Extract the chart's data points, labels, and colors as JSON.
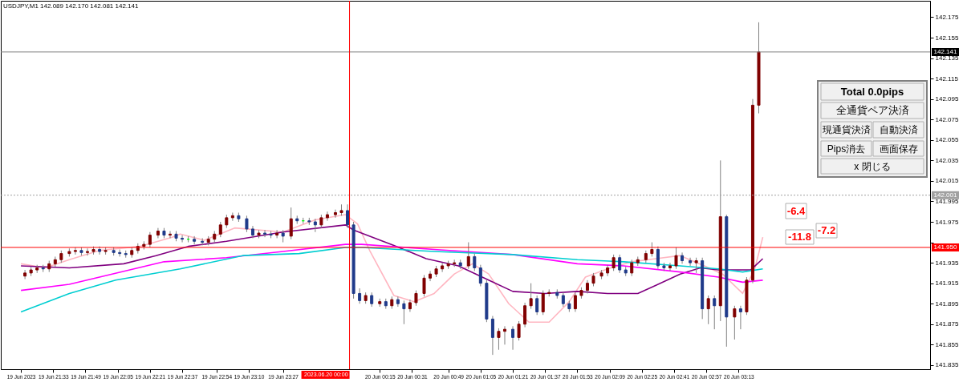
{
  "chart_data": {
    "type": "candlestick",
    "title": "USDJPY,M1 142.089 142.170 142.081 142.141",
    "x": [
      "2023-06-19T21:19",
      "2023-06-19T21:22",
      "2023-06-19T21:25",
      "2023-06-19T21:28",
      "2023-06-19T21:31",
      "2023-06-19T21:34",
      "2023-06-19T21:37",
      "2023-06-19T21:41",
      "2023-06-19T21:44",
      "2023-06-19T21:47",
      "2023-06-19T21:50",
      "2023-06-19T21:53",
      "2023-06-19T21:56",
      "2023-06-19T21:59",
      "2023-06-19T22:03",
      "2023-06-19T22:06",
      "2023-06-19T22:09",
      "2023-06-19T22:12",
      "2023-06-19T22:15",
      "2023-06-19T22:18",
      "2023-06-19T22:21",
      "2023-06-19T22:25",
      "2023-06-19T22:28",
      "2023-06-19T22:31",
      "2023-06-19T22:34",
      "2023-06-19T22:37",
      "2023-06-19T22:40",
      "2023-06-19T22:43",
      "2023-06-19T22:47",
      "2023-06-19T22:50",
      "2023-06-19T22:53",
      "2023-06-19T22:56",
      "2023-06-19T22:59",
      "2023-06-19T23:02",
      "2023-06-19T23:05",
      "2023-06-19T23:09",
      "2023-06-19T23:12",
      "2023-06-19T23:15",
      "2023-06-19T23:18",
      "2023-06-19T23:21",
      "2023-06-19T23:24",
      "2023-06-19T23:27",
      "2023-06-19T23:31",
      "2023-06-19T23:34",
      "2023-06-19T23:37",
      "2023-06-19T23:40",
      "2023-06-19T23:43",
      "2023-06-19T23:46",
      "2023-06-19T23:49",
      "2023-06-19T23:53",
      "2023-06-19T23:56",
      "2023-06-19T23:59",
      "2023-06-20T00:02",
      "2023-06-20T00:05",
      "2023-06-20T00:08",
      "2023-06-20T00:11",
      "2023-06-20T00:15",
      "2023-06-20T00:18",
      "2023-06-20T00:21",
      "2023-06-20T00:24",
      "2023-06-20T00:27",
      "2023-06-20T00:30",
      "2023-06-20T00:33",
      "2023-06-20T00:37",
      "2023-06-20T00:40",
      "2023-06-20T00:43",
      "2023-06-20T00:46",
      "2023-06-20T00:49",
      "2023-06-20T00:52",
      "2023-06-20T00:55",
      "2023-06-20T00:59",
      "2023-06-20T01:02",
      "2023-06-20T01:05",
      "2023-06-20T01:08",
      "2023-06-20T01:11",
      "2023-06-20T01:14",
      "2023-06-20T01:17",
      "2023-06-20T01:21",
      "2023-06-20T01:24",
      "2023-06-20T01:27",
      "2023-06-20T01:30",
      "2023-06-20T01:33",
      "2023-06-20T01:36",
      "2023-06-20T01:39",
      "2023-06-20T01:43",
      "2023-06-20T01:46",
      "2023-06-20T01:49",
      "2023-06-20T01:52",
      "2023-06-20T01:55",
      "2023-06-20T01:58",
      "2023-06-20T02:01",
      "2023-06-20T02:05",
      "2023-06-20T02:08",
      "2023-06-20T02:11",
      "2023-06-20T02:14",
      "2023-06-20T02:17",
      "2023-06-20T02:20",
      "2023-06-20T02:23",
      "2023-06-20T02:27",
      "2023-06-20T02:30",
      "2023-06-20T02:33",
      "2023-06-20T02:36",
      "2023-06-20T02:39",
      "2023-06-20T02:42",
      "2023-06-20T02:45",
      "2023-06-20T02:49",
      "2023-06-20T02:52",
      "2023-06-20T02:55",
      "2023-06-20T02:58",
      "2023-06-20T03:01",
      "2023-06-20T03:04",
      "2023-06-20T03:07",
      "2023-06-20T03:11",
      "2023-06-20T03:14",
      "2023-06-20T03:17",
      "2023-06-20T03:20",
      "2023-06-20T03:23"
    ],
    "ohlc": [
      [
        141.922,
        141.928,
        141.919,
        141.925
      ],
      [
        141.925,
        141.931,
        141.922,
        141.928
      ],
      [
        141.928,
        141.933,
        141.925,
        141.93
      ],
      [
        141.93,
        141.933,
        141.926,
        141.929
      ],
      [
        141.929,
        141.937,
        141.926,
        141.934
      ],
      [
        141.934,
        141.941,
        141.931,
        141.938
      ],
      [
        141.938,
        141.947,
        141.935,
        141.944
      ],
      [
        141.944,
        141.949,
        141.941,
        141.946
      ],
      [
        141.946,
        141.95,
        141.943,
        141.947
      ],
      [
        141.947,
        141.95,
        141.942,
        141.945
      ],
      [
        141.945,
        141.949,
        141.942,
        141.946
      ],
      [
        141.946,
        141.951,
        141.943,
        141.948
      ],
      [
        141.948,
        141.951,
        141.943,
        141.946
      ],
      [
        141.946,
        141.95,
        141.943,
        141.947
      ],
      [
        141.947,
        141.95,
        141.942,
        141.945
      ],
      [
        141.945,
        141.948,
        141.941,
        141.944
      ],
      [
        141.944,
        141.947,
        141.94,
        141.943
      ],
      [
        141.943,
        141.95,
        141.94,
        141.947
      ],
      [
        141.947,
        141.954,
        141.944,
        141.951
      ],
      [
        141.951,
        141.956,
        141.948,
        141.953
      ],
      [
        141.953,
        141.965,
        141.95,
        141.962
      ],
      [
        141.962,
        141.969,
        141.959,
        141.966
      ],
      [
        141.966,
        141.969,
        141.959,
        141.962
      ],
      [
        141.962,
        141.966,
        141.959,
        141.963
      ],
      [
        141.963,
        141.966,
        141.956,
        141.959
      ],
      [
        141.959,
        141.962,
        141.955,
        141.958
      ],
      [
        141.958,
        141.961,
        141.955,
        141.958
      ],
      [
        141.958,
        141.961,
        141.953,
        141.956
      ],
      [
        141.956,
        141.959,
        141.952,
        141.955
      ],
      [
        141.955,
        141.961,
        141.952,
        141.958
      ],
      [
        141.958,
        141.966,
        141.955,
        141.963
      ],
      [
        141.963,
        141.975,
        141.96,
        141.972
      ],
      [
        141.972,
        141.982,
        141.969,
        141.979
      ],
      [
        141.979,
        141.984,
        141.976,
        141.981
      ],
      [
        141.981,
        141.984,
        141.975,
        141.978
      ],
      [
        141.978,
        141.981,
        141.965,
        141.968
      ],
      [
        141.968,
        141.971,
        141.959,
        141.962
      ],
      [
        141.962,
        141.967,
        141.959,
        141.964
      ],
      [
        141.964,
        141.967,
        141.96,
        141.963
      ],
      [
        141.963,
        141.966,
        141.959,
        141.962
      ],
      [
        141.962,
        141.967,
        141.959,
        141.964
      ],
      [
        141.964,
        141.967,
        141.955,
        141.961
      ],
      [
        141.961,
        141.989,
        141.958,
        141.978
      ],
      [
        141.978,
        141.981,
        141.973,
        141.976
      ],
      [
        141.976,
        141.979,
        141.973,
        141.976
      ],
      [
        141.976,
        141.979,
        141.972,
        141.975
      ],
      [
        141.975,
        141.978,
        141.965,
        141.972
      ],
      [
        141.972,
        141.982,
        141.969,
        141.979
      ],
      [
        141.979,
        141.985,
        141.976,
        141.982
      ],
      [
        141.982,
        141.987,
        141.979,
        141.984
      ],
      [
        141.984,
        141.992,
        141.981,
        141.986
      ],
      [
        141.986,
        141.992,
        141.969,
        141.972
      ],
      [
        141.972,
        141.975,
        141.9,
        141.905
      ],
      [
        141.905,
        141.91,
        141.895,
        141.898
      ],
      [
        141.898,
        141.906,
        141.895,
        141.903
      ],
      [
        141.903,
        141.906,
        141.892,
        141.895
      ],
      [
        141.895,
        141.9,
        141.892,
        141.897
      ],
      [
        141.897,
        141.9,
        141.89,
        141.893
      ],
      [
        141.893,
        141.902,
        141.89,
        141.899
      ],
      [
        141.899,
        141.902,
        141.892,
        141.895
      ],
      [
        141.895,
        141.898,
        141.875,
        141.89
      ],
      [
        141.89,
        141.899,
        141.887,
        141.896
      ],
      [
        141.896,
        141.908,
        141.893,
        141.905
      ],
      [
        141.905,
        141.923,
        141.902,
        141.92
      ],
      [
        141.92,
        141.927,
        141.917,
        141.924
      ],
      [
        141.924,
        141.932,
        141.921,
        141.929
      ],
      [
        141.929,
        141.935,
        141.926,
        141.932
      ],
      [
        141.932,
        141.937,
        141.929,
        141.934
      ],
      [
        141.934,
        141.938,
        141.931,
        141.935
      ],
      [
        141.935,
        141.938,
        141.929,
        141.932
      ],
      [
        141.932,
        141.955,
        141.929,
        141.941
      ],
      [
        141.941,
        141.944,
        141.927,
        141.93
      ],
      [
        141.93,
        141.933,
        141.912,
        141.915
      ],
      [
        141.915,
        141.918,
        141.877,
        141.88
      ],
      [
        141.88,
        141.883,
        141.845,
        141.862
      ],
      [
        141.862,
        141.871,
        141.85,
        141.868
      ],
      [
        141.868,
        141.873,
        141.855,
        141.87
      ],
      [
        141.87,
        141.873,
        141.85,
        141.862
      ],
      [
        141.862,
        141.878,
        141.859,
        141.875
      ],
      [
        141.875,
        141.896,
        141.872,
        141.893
      ],
      [
        141.893,
        141.915,
        141.89,
        141.9
      ],
      [
        141.9,
        141.903,
        141.884,
        141.887
      ],
      [
        141.887,
        141.908,
        141.884,
        141.905
      ],
      [
        141.905,
        141.909,
        141.902,
        141.906
      ],
      [
        141.906,
        141.909,
        141.9,
        141.903
      ],
      [
        141.903,
        141.906,
        141.892,
        141.895
      ],
      [
        141.895,
        141.898,
        141.887,
        141.89
      ],
      [
        141.89,
        141.906,
        141.887,
        141.903
      ],
      [
        141.903,
        141.911,
        141.9,
        141.908
      ],
      [
        141.908,
        141.918,
        141.905,
        141.915
      ],
      [
        141.915,
        141.925,
        141.912,
        141.922
      ],
      [
        141.922,
        141.928,
        141.919,
        141.925
      ],
      [
        141.925,
        141.933,
        141.922,
        141.93
      ],
      [
        141.93,
        141.943,
        141.927,
        141.94
      ],
      [
        141.94,
        141.943,
        141.925,
        141.928
      ],
      [
        141.928,
        141.931,
        141.922,
        141.925
      ],
      [
        141.925,
        141.938,
        141.922,
        141.935
      ],
      [
        141.935,
        141.941,
        141.932,
        141.938
      ],
      [
        141.938,
        141.947,
        141.935,
        141.944
      ],
      [
        141.944,
        141.955,
        141.941,
        141.948
      ],
      [
        141.948,
        141.951,
        141.929,
        141.932
      ],
      [
        141.932,
        141.935,
        141.927,
        141.93
      ],
      [
        141.93,
        141.935,
        141.927,
        141.932
      ],
      [
        141.932,
        141.95,
        141.929,
        141.942
      ],
      [
        141.942,
        141.945,
        141.934,
        141.937
      ],
      [
        141.937,
        141.94,
        141.932,
        141.935
      ],
      [
        141.935,
        141.94,
        141.925,
        141.937
      ],
      [
        141.937,
        141.94,
        141.88,
        141.89
      ],
      [
        141.89,
        141.903,
        141.875,
        141.9
      ],
      [
        141.9,
        141.903,
        141.87,
        141.893
      ],
      [
        141.893,
        142.035,
        141.878,
        141.98
      ],
      [
        141.98,
        141.982,
        141.853,
        141.882
      ],
      [
        141.882,
        141.893,
        141.86,
        141.89
      ],
      [
        141.89,
        141.893,
        141.87,
        141.887
      ],
      [
        141.887,
        141.921,
        141.884,
        141.918
      ],
      [
        141.918,
        142.095,
        141.915,
        142.089
      ],
      [
        142.089,
        142.17,
        142.081,
        142.141
      ]
    ],
    "colors": [
      "#800000",
      "#800000",
      "#800000",
      "#1f3a8a",
      "#800000",
      "#800000",
      "#800000",
      "#800000",
      "#800000",
      "#1f3a8a",
      "#800000",
      "#800000",
      "#1f3a8a",
      "#800000",
      "#1f3a8a",
      "#1f3a8a",
      "#1f3a8a",
      "#800000",
      "#800000",
      "#800000",
      "#800000",
      "#800000",
      "#1f3a8a",
      "#800000",
      "#1f3a8a",
      "#1f3a8a",
      "#00ff00",
      "#1f3a8a",
      "#1f3a8a",
      "#800000",
      "#800000",
      "#800000",
      "#800000",
      "#800000",
      "#1f3a8a",
      "#1f3a8a",
      "#1f3a8a",
      "#800000",
      "#1f3a8a",
      "#1f3a8a",
      "#800000",
      "#1f3a8a",
      "#800000",
      "#1f3a8a",
      "#00ff00",
      "#1f3a8a",
      "#1f3a8a",
      "#800000",
      "#800000",
      "#800000",
      "#800000",
      "#1f3a8a",
      "#1f3a8a",
      "#1f3a8a",
      "#800000",
      "#1f3a8a",
      "#800000",
      "#1f3a8a",
      "#800000",
      "#1f3a8a",
      "#1f3a8a",
      "#800000",
      "#800000",
      "#800000",
      "#800000",
      "#800000",
      "#800000",
      "#800000",
      "#800000",
      "#1f3a8a",
      "#800000",
      "#1f3a8a",
      "#1f3a8a",
      "#1f3a8a",
      "#1f3a8a",
      "#800000",
      "#800000",
      "#1f3a8a",
      "#800000",
      "#800000",
      "#800000",
      "#1f3a8a",
      "#800000",
      "#800000",
      "#1f3a8a",
      "#1f3a8a",
      "#1f3a8a",
      "#800000",
      "#800000",
      "#800000",
      "#800000",
      "#800000",
      "#800000",
      "#800000",
      "#1f3a8a",
      "#1f3a8a",
      "#800000",
      "#800000",
      "#800000",
      "#800000",
      "#1f3a8a",
      "#1f3a8a",
      "#800000",
      "#800000",
      "#1f3a8a",
      "#1f3a8a",
      "#800000",
      "#1f3a8a",
      "#800000",
      "#1f3a8a",
      "#800000",
      "#1f3a8a",
      "#800000",
      "#1f3a8a",
      "#800000",
      "#800000",
      "#800000"
    ],
    "series": [
      {
        "type": "line",
        "color": "#ffb6c1",
        "x": [
          "2023-06-19T21:17",
          "2023-06-19T21:29",
          "2023-06-19T21:41",
          "2023-06-19T21:56",
          "2023-06-19T22:16",
          "2023-06-19T22:32",
          "2023-06-19T22:36",
          "2023-06-19T22:48",
          "2023-06-19T23:03",
          "2023-06-19T23:27",
          "2023-06-19T23:43",
          "2023-06-19T23:58",
          "2023-06-20T00:04",
          "2023-06-20T00:10",
          "2023-06-20T00:22",
          "2023-06-20T00:32",
          "2023-06-20T00:42",
          "2023-06-20T00:52",
          "2023-06-20T01:01",
          "2023-06-20T01:09",
          "2023-06-20T01:19",
          "2023-06-20T01:29",
          "2023-06-20T01:39",
          "2023-06-20T01:49",
          "2023-06-20T01:57",
          "2023-06-20T02:08",
          "2023-06-20T02:20",
          "2023-06-20T02:32",
          "2023-06-20T02:44",
          "2023-06-20T02:56",
          "2023-06-20T03:05",
          "2023-06-20T03:15",
          "2023-06-20T03:21",
          "2023-06-20T03:25"
        ],
        "values": [
          141.934,
          141.93,
          141.938,
          141.947,
          141.951,
          141.96,
          141.963,
          141.957,
          141.969,
          141.965,
          141.977,
          141.982,
          141.973,
          141.947,
          141.903,
          141.897,
          141.905,
          141.924,
          141.934,
          141.924,
          141.895,
          141.877,
          141.877,
          141.897,
          141.921,
          141.929,
          141.936,
          141.939,
          141.942,
          141.932,
          141.924,
          141.905,
          141.929,
          141.96
        ]
      },
      {
        "type": "line",
        "color": "#800080",
        "x": [
          "2023-06-19T21:17",
          "2023-06-19T21:41",
          "2023-06-19T22:08",
          "2023-06-19T22:24",
          "2023-06-19T22:40",
          "2023-06-19T22:59",
          "2023-06-19T23:27",
          "2023-06-19T23:58",
          "2023-06-20T00:02",
          "2023-06-20T00:22",
          "2023-06-20T00:38",
          "2023-06-20T00:54",
          "2023-06-20T01:09",
          "2023-06-20T01:21",
          "2023-06-20T01:37",
          "2023-06-20T01:53",
          "2023-06-20T02:08",
          "2023-06-20T02:23",
          "2023-06-20T02:32",
          "2023-06-20T02:44",
          "2023-06-20T02:54",
          "2023-06-20T03:03",
          "2023-06-20T03:13",
          "2023-06-20T03:19",
          "2023-06-20T03:25"
        ],
        "values": [
          141.932,
          141.93,
          141.934,
          141.942,
          141.951,
          141.956,
          141.965,
          141.972,
          141.967,
          141.952,
          141.939,
          141.932,
          141.918,
          141.907,
          141.905,
          141.907,
          141.905,
          141.905,
          141.913,
          141.924,
          141.93,
          141.928,
          141.928,
          141.928,
          141.939
        ]
      },
      {
        "type": "line",
        "color": "#ff00ff",
        "x": [
          "2023-06-19T21:17",
          "2023-06-19T21:41",
          "2023-06-19T21:56",
          "2023-06-19T22:28",
          "2023-06-19T22:59",
          "2023-06-19T23:27",
          "2023-06-19T23:58",
          "2023-06-20T00:06",
          "2023-06-20T00:42",
          "2023-06-20T01:21",
          "2023-06-20T01:53",
          "2023-06-20T02:16",
          "2023-06-20T02:44",
          "2023-06-20T03:03",
          "2023-06-20T03:15",
          "2023-06-20T03:25"
        ],
        "values": [
          141.908,
          141.914,
          141.921,
          141.936,
          141.94,
          141.946,
          141.953,
          141.953,
          141.948,
          141.943,
          141.934,
          141.932,
          141.926,
          141.921,
          141.916,
          141.918
        ]
      },
      {
        "type": "line",
        "color": "#00ced1",
        "x": [
          "2023-06-19T21:17",
          "2023-06-19T21:41",
          "2023-06-19T22:04",
          "2023-06-19T22:36",
          "2023-06-19T23:07",
          "2023-06-19T23:35",
          "2023-06-19T23:58",
          "2023-06-20T00:06",
          "2023-06-20T00:42",
          "2023-06-20T01:21",
          "2023-06-20T01:53",
          "2023-06-20T02:16",
          "2023-06-20T02:44",
          "2023-06-20T03:03",
          "2023-06-20T03:15",
          "2023-06-20T03:25"
        ],
        "values": [
          141.887,
          141.905,
          141.918,
          141.929,
          141.942,
          141.944,
          141.95,
          141.95,
          141.946,
          141.943,
          141.938,
          141.936,
          141.932,
          141.929,
          141.926,
          141.929
        ]
      }
    ],
    "xlim": [
      "2023-06-19T21:09",
      "2023-06-20T04:46"
    ],
    "ylim": [
      141.831,
      142.191
    ],
    "xticks": [
      {
        "value": "2023-06-19T21:17",
        "label": "19 Jun 2023"
      },
      {
        "value": "2023-06-19T21:33",
        "label": "19 Jun 21:33"
      },
      {
        "value": "2023-06-19T21:49",
        "label": "19 Jun 21:49"
      },
      {
        "value": "2023-06-19T22:05",
        "label": "19 Jun 22:05"
      },
      {
        "value": "2023-06-19T22:21",
        "label": "19 Jun 22:21"
      },
      {
        "value": "2023-06-19T22:37",
        "label": "19 Jun 22:37"
      },
      {
        "value": "2023-06-19T22:54",
        "label": "19 Jun 22:54"
      },
      {
        "value": "2023-06-19T23:10",
        "label": "19 Jun 23:10"
      },
      {
        "value": "2023-06-19T23:27",
        "label": "19 Jun 23:27"
      },
      {
        "value": "2023-06-20T00:15",
        "label": "20 Jun 00:15"
      },
      {
        "value": "2023-06-20T00:31",
        "label": "20 Jun 00:31"
      },
      {
        "value": "2023-06-20T00:49",
        "label": "20 Jun 00:49"
      },
      {
        "value": "2023-06-20T01:05",
        "label": "20 Jun 01:05"
      },
      {
        "value": "2023-06-20T01:21",
        "label": "20 Jun 01:21"
      },
      {
        "value": "2023-06-20T01:37",
        "label": "20 Jun 01:37"
      },
      {
        "value": "2023-06-20T01:53",
        "label": "20 Jun 01:53"
      },
      {
        "value": "2023-06-20T02:09",
        "label": "20 Jun 02:09"
      },
      {
        "value": "2023-06-20T02:25",
        "label": "20 Jun 02:25"
      },
      {
        "value": "2023-06-20T02:41",
        "label": "20 Jun 02:41"
      },
      {
        "value": "2023-06-20T02:57",
        "label": "20 Jun 02:57"
      },
      {
        "value": "2023-06-20T03:13",
        "label": "20 Jun 03:13"
      }
    ],
    "yticks": [
      141.835,
      141.855,
      141.875,
      141.895,
      141.915,
      141.935,
      {
        "value": 141.955,
        "label": null
      },
      141.975,
      141.995,
      142.015,
      142.035,
      142.055,
      142.075,
      142.095,
      142.115,
      142.135,
      142.155,
      142.175
    ],
    "ref_lines": [
      {
        "axis": "y",
        "value": 142.141,
        "label": "142.141",
        "color": "#808080",
        "line_style": "solid"
      },
      {
        "axis": "y",
        "value": 142.001,
        "label": "142.001",
        "color": "#a0a0a0",
        "line_style": "dotted"
      },
      {
        "axis": "y",
        "value": 141.95,
        "label": "141.950",
        "color": "#ff0000",
        "line_style": "solid"
      },
      {
        "axis": "x",
        "value": "2023-06-20T00:00",
        "label": "2023.06.20 00:00",
        "color": "#ff0000",
        "line_style": "solid"
      }
    ],
    "annotations": [
      "Total 0.0pips",
      "全通貨ペア決済",
      "現通貨決済",
      "自動決済",
      "Pips消去",
      "画面保存",
      "x 閉じる",
      "-6.4",
      "-11.8",
      "-7.2"
    ],
    "grid": false
  }
}
